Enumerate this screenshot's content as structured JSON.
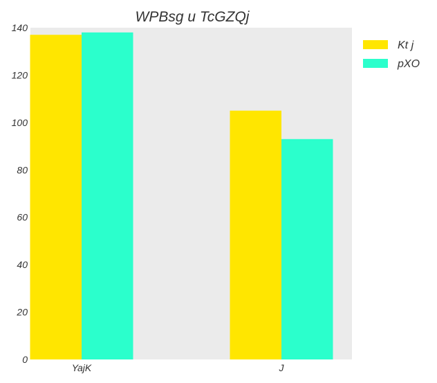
{
  "chart_data": {
    "type": "bar",
    "title": "WPBsg u TcGZQj",
    "xlabel": "",
    "ylabel": "",
    "categories": [
      "YajK",
      "J"
    ],
    "series": [
      {
        "name": "Kt j",
        "values": [
          137,
          105
        ],
        "color": "#ffe600"
      },
      {
        "name": "pXO",
        "values": [
          138,
          93
        ],
        "color": "#2bffcc"
      }
    ],
    "ylim": [
      0,
      140
    ],
    "yticks": [
      0,
      20,
      40,
      60,
      80,
      100,
      120,
      140
    ],
    "grid": false,
    "legend_position": "top-right",
    "plot_background": "#ebebeb"
  }
}
